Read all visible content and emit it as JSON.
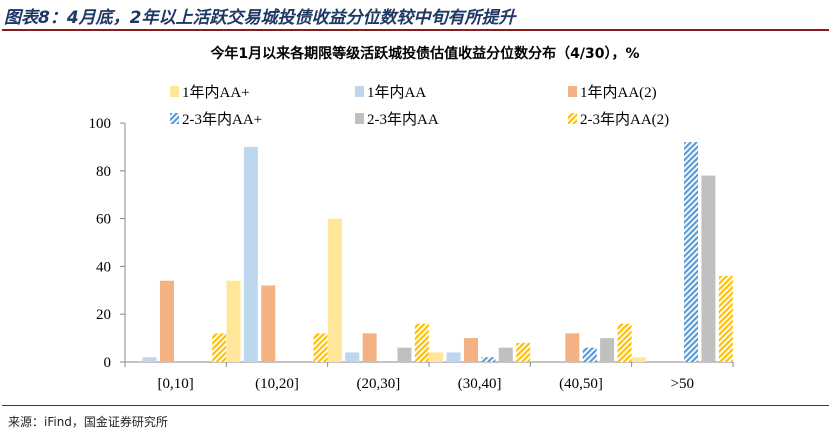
{
  "figure_title": "图表8：4月底，2年以上活跃交易城投债收益分位数较中旬有所提升",
  "source": "来源：iFind，国金证券研究所",
  "chart_data": {
    "type": "bar",
    "title": "今年1月以来各期限等级活跃城投债估值收益分位数分布（4/30），%",
    "categories": [
      "[0,10]",
      "(10,20]",
      "(20,30]",
      "(30,40]",
      "(40,50]",
      ">50"
    ],
    "ylim": [
      0,
      100
    ],
    "yticks": [
      0,
      20,
      40,
      60,
      80,
      100
    ],
    "grid": false,
    "legend_position": "top",
    "series": [
      {
        "name": "1年内AA+",
        "color": "#ffe699",
        "pattern": "solid",
        "values": [
          0,
          34,
          60,
          4,
          0,
          2
        ]
      },
      {
        "name": "1年内AA",
        "color": "#bdd7ee",
        "pattern": "solid",
        "values": [
          2,
          90,
          4,
          4,
          0,
          0
        ]
      },
      {
        "name": "1年内AA(2)",
        "color": "#f4b183",
        "pattern": "solid",
        "values": [
          34,
          32,
          12,
          10,
          12,
          0
        ]
      },
      {
        "name": "2-3年内AA+",
        "color": "#5b9bd5",
        "pattern": "hatch",
        "values": [
          0,
          0,
          0,
          2,
          6,
          92
        ]
      },
      {
        "name": "2-3年内AA",
        "color": "#c0c0c0",
        "pattern": "solid",
        "values": [
          0,
          0,
          6,
          6,
          10,
          78
        ]
      },
      {
        "name": "2-3年内AA(2)",
        "color": "#ffc000",
        "pattern": "hatch",
        "values": [
          12,
          12,
          16,
          8,
          16,
          36
        ]
      }
    ]
  }
}
